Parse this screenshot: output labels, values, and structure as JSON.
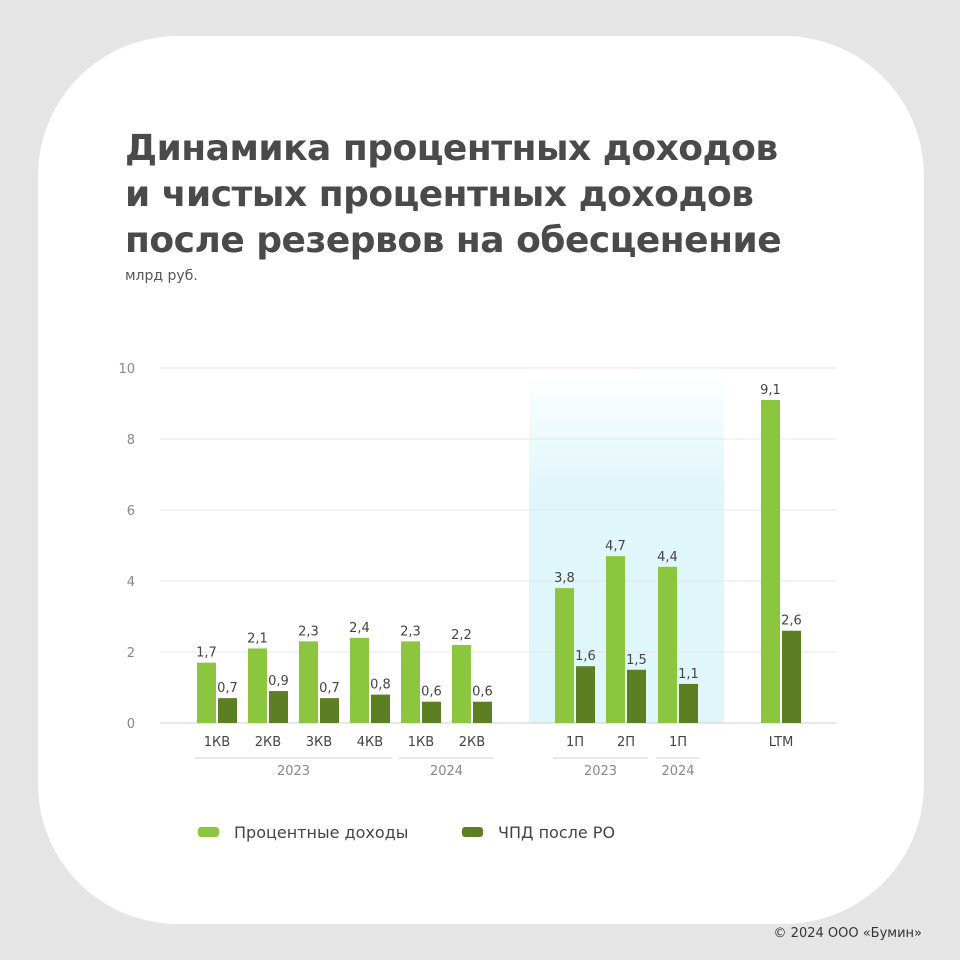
{
  "title_lines": [
    "Динамика процентных доходов",
    "и чистых процентных доходов",
    "после резервов на обесценение"
  ],
  "unit": "млрд руб.",
  "copyright": "© 2024 ООО «Бумин»",
  "colors": {
    "primary": "#8cc63f",
    "secondary": "#5d7f23",
    "highlight_band": "#dff6fb",
    "text": "#4a4a4a"
  },
  "chart_data": {
    "type": "bar",
    "categories": [
      "1КВ",
      "2КВ",
      "3КВ",
      "4КВ",
      "1КВ",
      "2КВ",
      "1П",
      "2П",
      "1П",
      "LTM"
    ],
    "year_groups": [
      {
        "label": "2023",
        "from": 0,
        "to": 3
      },
      {
        "label": "2024",
        "from": 4,
        "to": 5
      },
      {
        "label": "2023",
        "from": 6,
        "to": 7
      },
      {
        "label": "2024",
        "from": 8,
        "to": 8
      }
    ],
    "series": [
      {
        "name": "Процентные доходы",
        "values": [
          1.7,
          2.1,
          2.3,
          2.4,
          2.3,
          2.2,
          3.8,
          4.7,
          4.4,
          9.1
        ],
        "labels": [
          "1,7",
          "2,1",
          "2,3",
          "2,4",
          "2,3",
          "2,2",
          "3,8",
          "4,7",
          "4,4",
          "9,1"
        ]
      },
      {
        "name": "ЧПД после РО",
        "values": [
          0.7,
          0.9,
          0.7,
          0.8,
          0.6,
          0.6,
          1.6,
          1.5,
          1.1,
          2.6
        ],
        "labels": [
          "0,7",
          "0,9",
          "0,7",
          "0,8",
          "0,6",
          "0,6",
          "1,6",
          "1,5",
          "1,1",
          "2,6"
        ]
      }
    ],
    "yticks": [
      "0",
      "2",
      "4",
      "6",
      "8",
      "10"
    ],
    "ylim": [
      0,
      10
    ],
    "grid": true,
    "legend_position": "bottom",
    "highlighted_categories": [
      6,
      7,
      8
    ]
  }
}
